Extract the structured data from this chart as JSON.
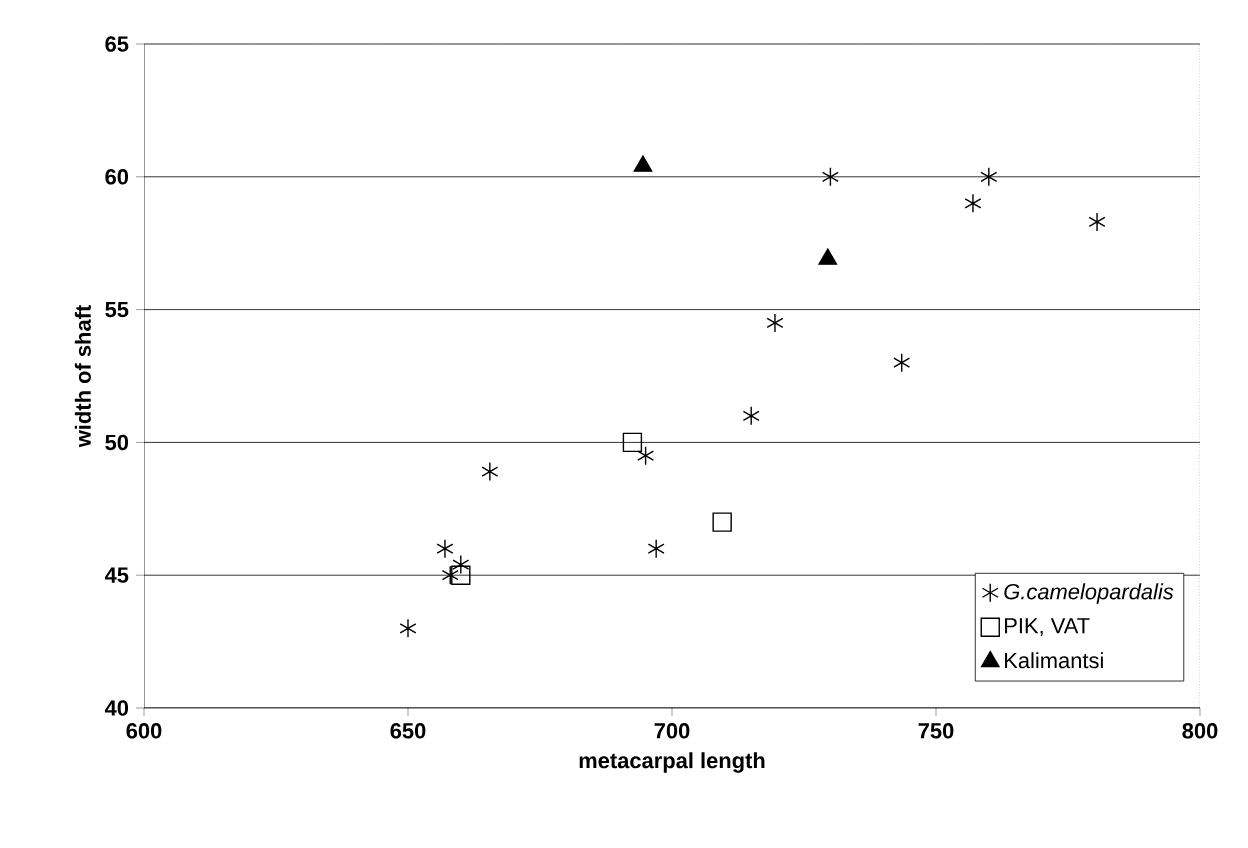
{
  "chart_data": {
    "type": "scatter",
    "xlabel": "metacarpal length",
    "ylabel": "width of shaft",
    "xlim": [
      600,
      800
    ],
    "ylim": [
      40,
      65
    ],
    "xticks": [
      600,
      650,
      700,
      750,
      800
    ],
    "yticks": [
      40,
      45,
      50,
      55,
      60,
      65
    ],
    "grid": "y",
    "legend": "bottom right",
    "series": [
      {
        "name": "*G.camelopardalis*",
        "color": "#000000",
        "marker": "cross",
        "x": [
          650,
          657,
          658,
          660,
          665.5,
          695,
          697,
          715,
          719.5,
          730,
          743.5,
          757,
          760,
          780.5
        ],
        "values": [
          43,
          46,
          45,
          45.4,
          48.9,
          49.5,
          46,
          51,
          54.5,
          60,
          53,
          59,
          60,
          58.3
        ]
      },
      {
        "name": "PIK, VAT",
        "color": "#000000",
        "marker": "square",
        "x": [
          660,
          692.5,
          709.5
        ],
        "values": [
          45,
          50,
          47
        ]
      },
      {
        "name": "Kalimantsi",
        "color": "#000000",
        "marker": "triangle",
        "x": [
          694.5,
          729.5
        ],
        "values": [
          60.4,
          56.9
        ]
      }
    ]
  }
}
